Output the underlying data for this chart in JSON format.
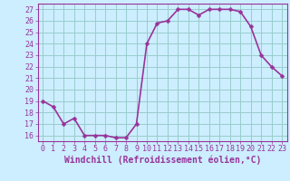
{
  "x": [
    0,
    1,
    2,
    3,
    4,
    5,
    6,
    7,
    8,
    9,
    10,
    11,
    12,
    13,
    14,
    15,
    16,
    17,
    18,
    19,
    20,
    21,
    22,
    23
  ],
  "y": [
    19.0,
    18.5,
    17.0,
    17.5,
    16.0,
    16.0,
    16.0,
    15.8,
    15.8,
    17.0,
    24.0,
    25.8,
    26.0,
    27.0,
    27.0,
    26.5,
    27.0,
    27.0,
    27.0,
    26.8,
    25.5,
    23.0,
    22.0,
    21.2
  ],
  "line_color": "#993399",
  "marker": "D",
  "marker_size": 2.5,
  "bg_color": "#cceeff",
  "grid_color": "#99cccc",
  "xlabel": "Windchill (Refroidissement éolien,°C)",
  "ylabel": "",
  "xlim": [
    -0.5,
    23.5
  ],
  "ylim": [
    15.5,
    27.5
  ],
  "yticks": [
    16,
    17,
    18,
    19,
    20,
    21,
    22,
    23,
    24,
    25,
    26,
    27
  ],
  "xticks": [
    0,
    1,
    2,
    3,
    4,
    5,
    6,
    7,
    8,
    9,
    10,
    11,
    12,
    13,
    14,
    15,
    16,
    17,
    18,
    19,
    20,
    21,
    22,
    23
  ],
  "tick_label_color": "#993399",
  "axis_color": "#993399",
  "line_width": 1.2,
  "tick_fontsize": 6.0,
  "xlabel_fontsize": 7.0
}
